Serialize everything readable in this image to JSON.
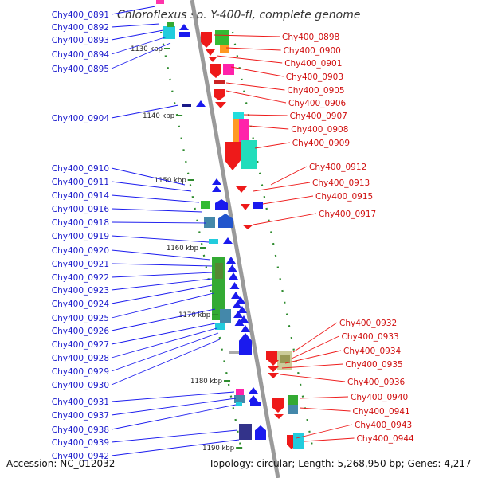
{
  "title": "Chloroflexus sp. Y-400-fl, complete genome",
  "footer": {
    "accession": "Accession: NC_012032",
    "summary": "Topology: circular; Length: 5,268,950 bp; Genes: 4,217"
  },
  "scale_marks": [
    "1130 kbp",
    "1140 kbp",
    "1150 kbp",
    "1160 kbp",
    "1170 kbp",
    "1180 kbp",
    "1190 kbp"
  ],
  "left_labels": [
    "Chy400_0891",
    "Chy400_0892",
    "Chy400_0893",
    "Chy400_0894",
    "Chy400_0895",
    "Chy400_0904",
    "Chy400_0910",
    "Chy400_0911",
    "Chy400_0914",
    "Chy400_0916",
    "Chy400_0918",
    "Chy400_0919",
    "Chy400_0920",
    "Chy400_0921",
    "Chy400_0922",
    "Chy400_0923",
    "Chy400_0924",
    "Chy400_0925",
    "Chy400_0926",
    "Chy400_0927",
    "Chy400_0928",
    "Chy400_0929",
    "Chy400_0930",
    "Chy400_0931",
    "Chy400_0937",
    "Chy400_0938",
    "Chy400_0939",
    "Chy400_0942"
  ],
  "right_labels": [
    "Chy400_0898",
    "Chy400_0900",
    "Chy400_0901",
    "Chy400_0903",
    "Chy400_0905",
    "Chy400_0906",
    "Chy400_0907",
    "Chy400_0908",
    "Chy400_0909",
    "Chy400_0912",
    "Chy400_0913",
    "Chy400_0915",
    "Chy400_0917",
    "Chy400_0932",
    "Chy400_0933",
    "Chy400_0934",
    "Chy400_0935",
    "Chy400_0936",
    "Chy400_0940",
    "Chy400_0941",
    "Chy400_0943",
    "Chy400_0944"
  ],
  "colors": {
    "backbone": "#9a9a9a",
    "forward_gene": "#1a1aee",
    "reverse_gene": "#ee1a1a",
    "tick": "#2e8b2e",
    "left_label": "#1a1acc",
    "right_label": "#d01010"
  }
}
